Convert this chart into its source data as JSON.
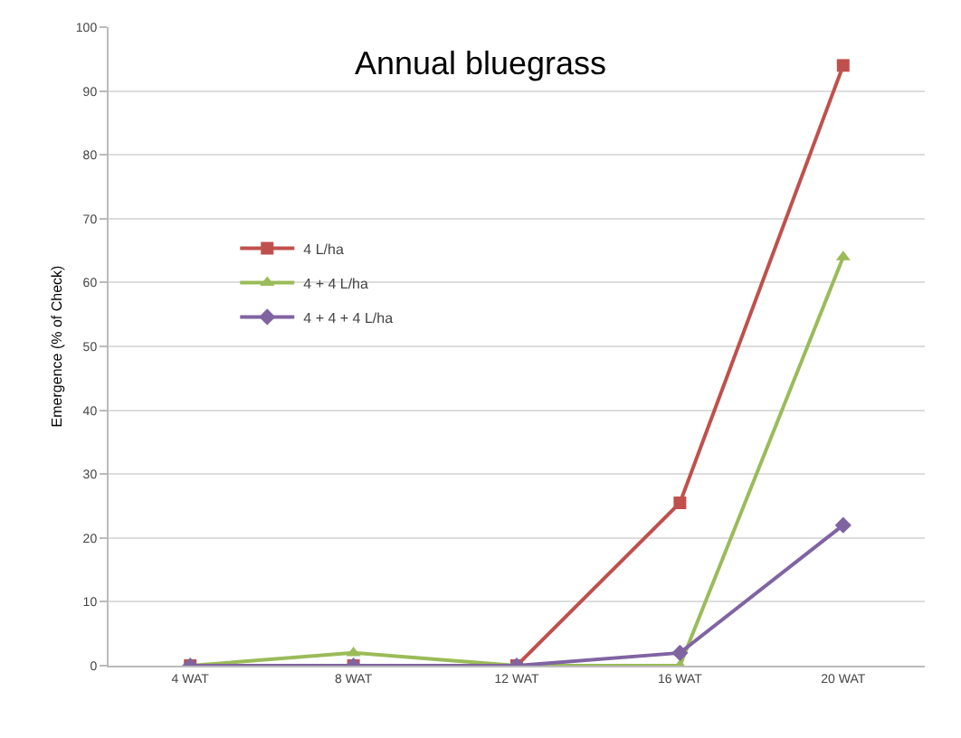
{
  "chart_data": {
    "type": "line",
    "title": "Annual bluegrass",
    "ylabel": "Emergence (% of Check)",
    "categories": [
      "4 WAT",
      "8 WAT",
      "12 WAT",
      "16 WAT",
      "20 WAT"
    ],
    "series": [
      {
        "name": "4 L/ha",
        "color": "#c0504d",
        "marker": "square",
        "values": [
          0,
          0,
          0,
          25.5,
          94
        ]
      },
      {
        "name": "4 + 4 L/ha",
        "color": "#9bbb59",
        "marker": "triangle",
        "values": [
          0,
          2,
          0,
          0,
          64
        ]
      },
      {
        "name": "4 + 4 + 4 L/ha",
        "color": "#8064a2",
        "marker": "diamond",
        "values": [
          0,
          0,
          0,
          2,
          22
        ]
      }
    ],
    "ylim": [
      0,
      100
    ],
    "yticks": [
      0,
      10,
      20,
      30,
      40,
      50,
      60,
      70,
      80,
      90,
      100
    ],
    "grid": "y",
    "legend": "left"
  }
}
